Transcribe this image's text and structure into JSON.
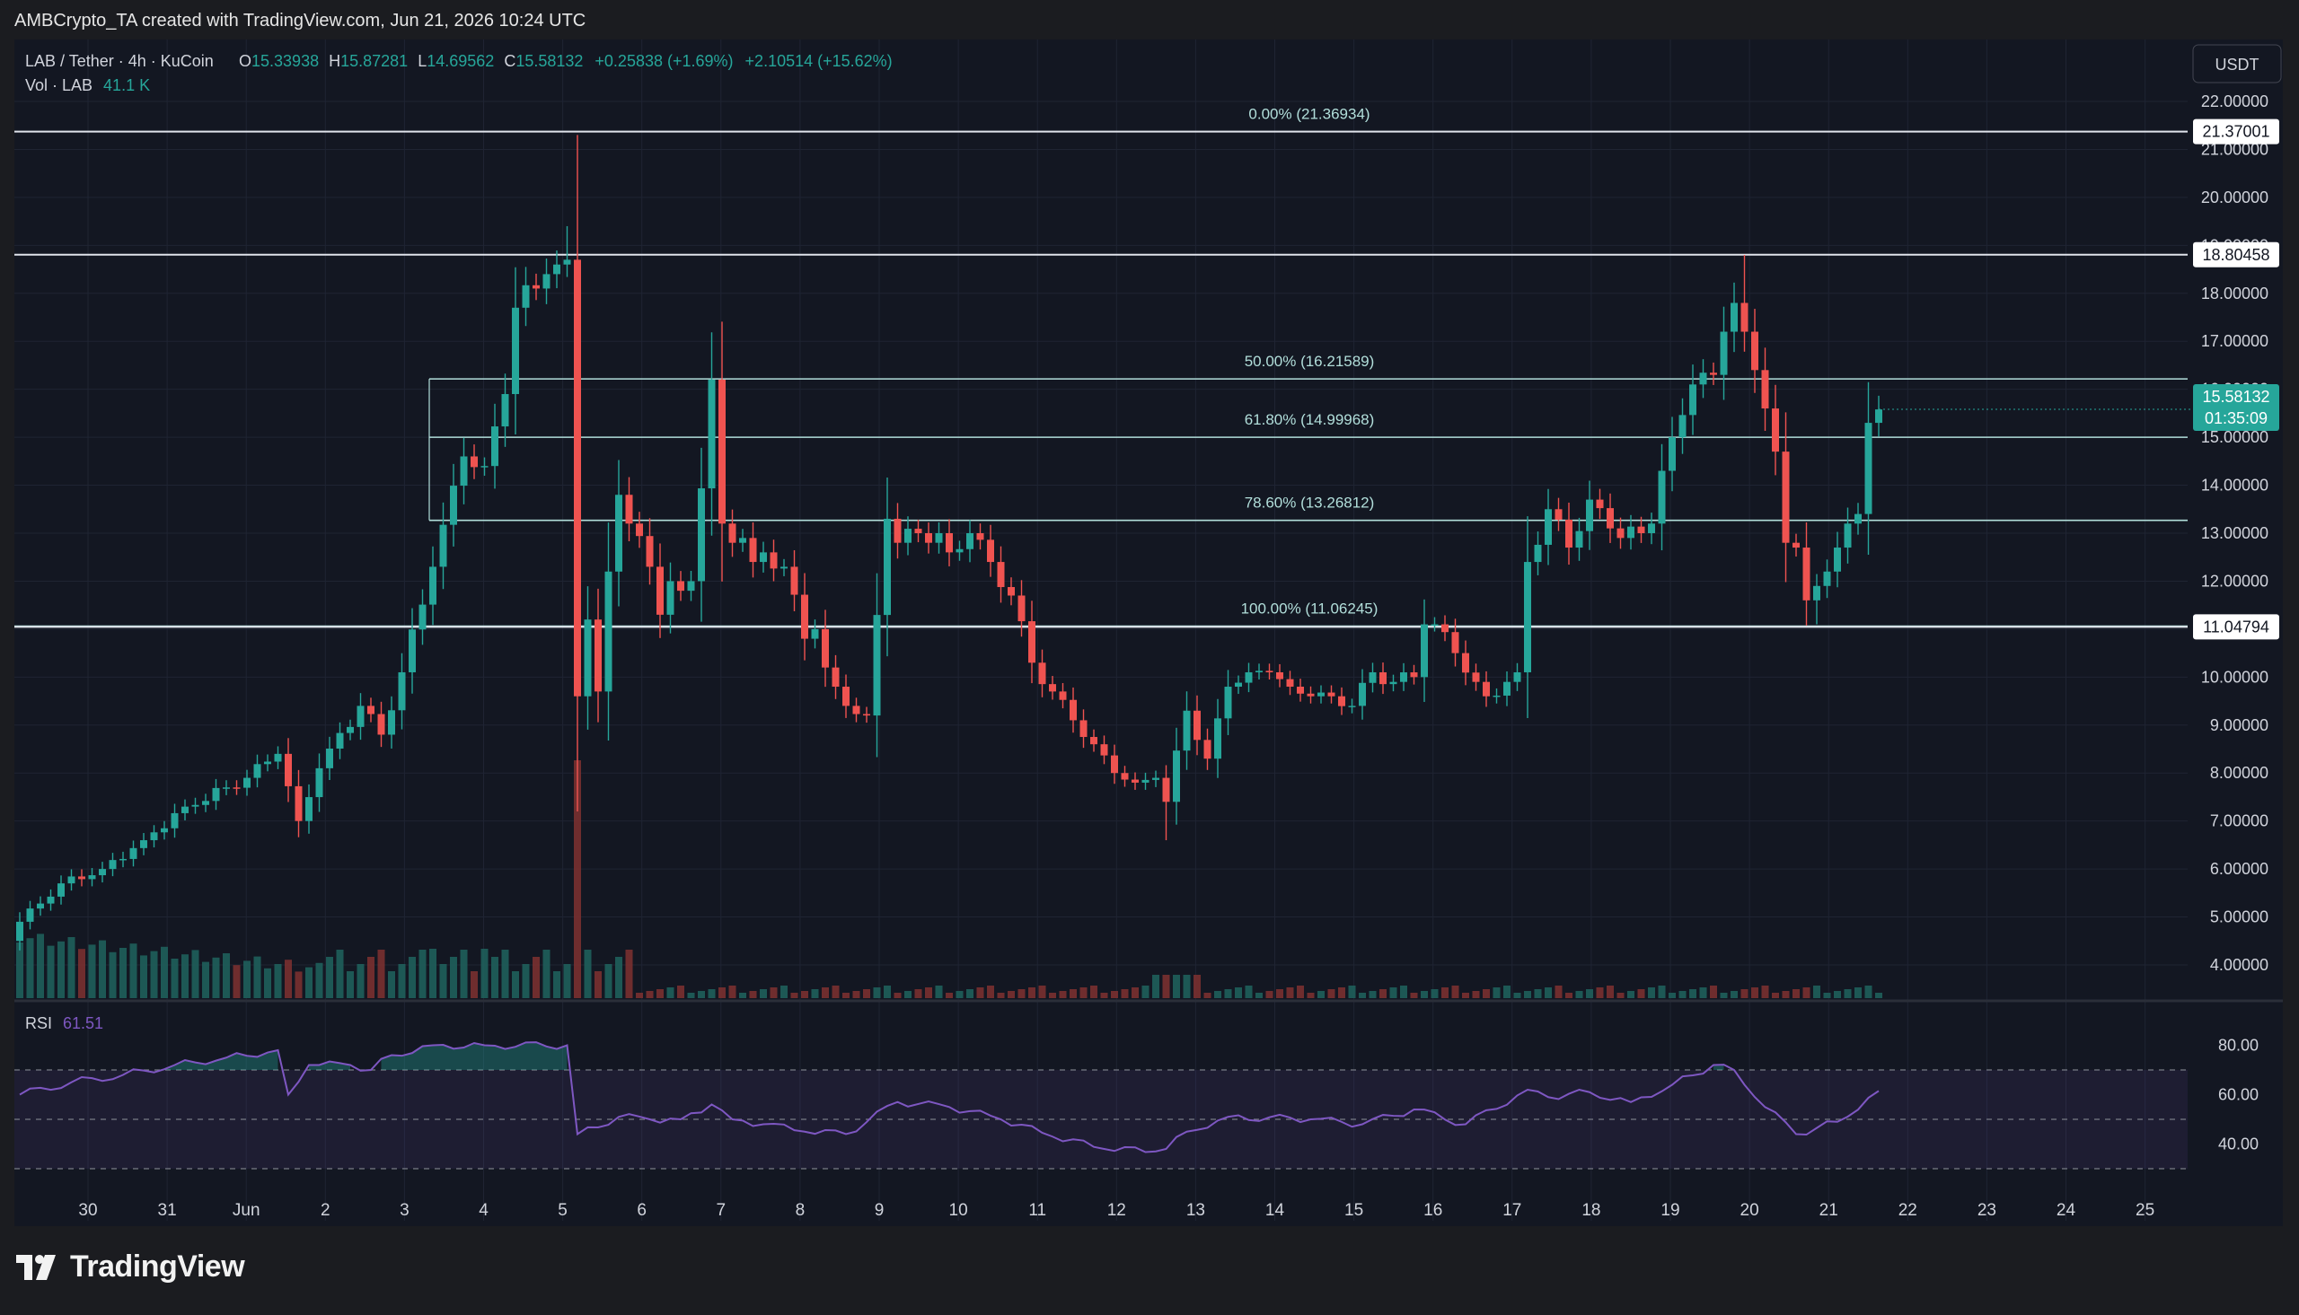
{
  "header": {
    "attribution": "AMBCrypto_TA created with TradingView.com, Jun 21, 2026 10:24 UTC"
  },
  "legend": {
    "symbol": "LAB / Tether · 4h · KuCoin",
    "o_label": "O",
    "o_value": "15.33938",
    "h_label": "H",
    "h_value": "15.87281",
    "l_label": "L",
    "l_value": "14.69562",
    "c_label": "C",
    "c_value": "15.58132",
    "change": "+0.25838 (+1.69%)",
    "change2": "+2.10514 (+15.62%)",
    "vol_label": "Vol · LAB",
    "vol_value": "41.1 K"
  },
  "currency_button": "USDT",
  "fib_labels": [
    "0.00% (21.36934)",
    "50.00% (16.21589)",
    "61.80% (14.99968)",
    "78.60% (13.26812)",
    "100.00% (11.06245)"
  ],
  "price_badges": [
    {
      "label": "21.37001",
      "value": 21.37001
    },
    {
      "label": "18.80458",
      "value": 18.80458
    },
    {
      "label": "11.04794",
      "value": 11.04794
    }
  ],
  "current_price_badge": {
    "price": "15.58132",
    "timer": "01:35:09",
    "value": 15.58132
  },
  "rsi": {
    "label": "RSI",
    "value": "61.51"
  },
  "footer": {
    "logo_text": "TradingView"
  },
  "colors": {
    "up": "#26a69a",
    "down": "#ef5350",
    "rsi_line": "#7e57c2",
    "fib_line": "#b2dfdb",
    "background": "#131722"
  },
  "chart_data": {
    "type": "candlestick",
    "title": "LAB / Tether · 4h · KuCoin",
    "y_axis": {
      "ticks": [
        4,
        5,
        6,
        7,
        8,
        9,
        10,
        11,
        12,
        13,
        14,
        15,
        16,
        17,
        18,
        19,
        20,
        21,
        22
      ],
      "tick_labels": [
        "4.00000",
        "5.00000",
        "6.00000",
        "7.00000",
        "8.00000",
        "9.00000",
        "10.00000",
        "11.00000",
        "12.00000",
        "13.00000",
        "14.00000",
        "15.00000",
        "16.00000",
        "17.00000",
        "18.00000",
        "19.00000",
        "20.00000",
        "21.00000",
        "22.00000"
      ]
    },
    "x_axis": {
      "labels": [
        "30",
        "31",
        "Jun",
        "2",
        "3",
        "4",
        "5",
        "6",
        "7",
        "8",
        "9",
        "10",
        "11",
        "12",
        "13",
        "14",
        "15",
        "16",
        "17",
        "18",
        "19",
        "20",
        "21",
        "22",
        "23",
        "24",
        "25"
      ]
    },
    "fibonacci": [
      {
        "level": "0.00%",
        "price": 21.36934
      },
      {
        "level": "50.00%",
        "price": 16.21589
      },
      {
        "level": "61.80%",
        "price": 14.99968
      },
      {
        "level": "78.60%",
        "price": 13.26812
      },
      {
        "level": "100.00%",
        "price": 11.06245
      }
    ],
    "horizontal_lines": [
      21.37001,
      18.80458,
      11.04794
    ],
    "anchor_points": [
      [
        0,
        4.9
      ],
      [
        4,
        5.7
      ],
      [
        8,
        6.0
      ],
      [
        12,
        6.6
      ],
      [
        16,
        7.3
      ],
      [
        20,
        7.7
      ],
      [
        22,
        7.9
      ],
      [
        25,
        8.4
      ],
      [
        27,
        7.0
      ],
      [
        29,
        8.1
      ],
      [
        33,
        9.4
      ],
      [
        35,
        8.8
      ],
      [
        37,
        10.1
      ],
      [
        40,
        12.3
      ],
      [
        43,
        14.6
      ],
      [
        45,
        14.4
      ],
      [
        47,
        15.9
      ],
      [
        48,
        17.7
      ],
      [
        50,
        18.1
      ],
      [
        51,
        18.4
      ],
      [
        52,
        18.6
      ],
      [
        53,
        18.7
      ],
      [
        54,
        9.6
      ],
      [
        55,
        11.2
      ],
      [
        56,
        9.7
      ],
      [
        57,
        12.2
      ],
      [
        58,
        13.8
      ],
      [
        59,
        13.2
      ],
      [
        61,
        12.3
      ],
      [
        62,
        11.3
      ],
      [
        63,
        12.0
      ],
      [
        64,
        11.8
      ],
      [
        65,
        12.0
      ],
      [
        67,
        16.2
      ],
      [
        68,
        13.2
      ],
      [
        69,
        12.8
      ],
      [
        70,
        12.9
      ],
      [
        71,
        12.4
      ],
      [
        72,
        12.6
      ],
      [
        74,
        12.3
      ],
      [
        76,
        10.8
      ],
      [
        77,
        11.0
      ],
      [
        78,
        10.2
      ],
      [
        79,
        9.8
      ],
      [
        80,
        9.4
      ],
      [
        82,
        9.2
      ],
      [
        84,
        13.3
      ],
      [
        85,
        12.8
      ],
      [
        87,
        13.0
      ],
      [
        88,
        12.8
      ],
      [
        89,
        13.0
      ],
      [
        90,
        12.6
      ],
      [
        92,
        13.0
      ],
      [
        94,
        12.4
      ],
      [
        96,
        11.7
      ],
      [
        98,
        10.3
      ],
      [
        100,
        9.7
      ],
      [
        102,
        9.1
      ],
      [
        104,
        8.6
      ],
      [
        106,
        8.0
      ],
      [
        108,
        7.8
      ],
      [
        110,
        7.9
      ],
      [
        111,
        7.4
      ],
      [
        113,
        9.3
      ],
      [
        115,
        8.3
      ],
      [
        117,
        9.8
      ],
      [
        119,
        10.1
      ],
      [
        121,
        10.1
      ],
      [
        123,
        9.8
      ],
      [
        125,
        9.6
      ],
      [
        127,
        9.6
      ],
      [
        129,
        9.4
      ],
      [
        131,
        10.1
      ],
      [
        133,
        9.9
      ],
      [
        135,
        10.0
      ],
      [
        136,
        11.1
      ],
      [
        137,
        11.1
      ],
      [
        139,
        10.5
      ],
      [
        141,
        9.9
      ],
      [
        142,
        9.6
      ],
      [
        144,
        9.9
      ],
      [
        145,
        10.1
      ],
      [
        146,
        12.4
      ],
      [
        148,
        13.5
      ],
      [
        150,
        12.7
      ],
      [
        152,
        13.7
      ],
      [
        154,
        13.1
      ],
      [
        155,
        12.9
      ],
      [
        157,
        13.0
      ],
      [
        158,
        13.2
      ],
      [
        159,
        14.3
      ],
      [
        160,
        15.0
      ],
      [
        162,
        16.1
      ],
      [
        164,
        16.3
      ],
      [
        165,
        17.2
      ],
      [
        166,
        17.8
      ],
      [
        167,
        17.2
      ],
      [
        168,
        16.4
      ],
      [
        169,
        15.6
      ],
      [
        170,
        14.7
      ],
      [
        171,
        12.8
      ],
      [
        172,
        12.7
      ],
      [
        173,
        11.6
      ],
      [
        174,
        11.9
      ],
      [
        175,
        12.2
      ],
      [
        176,
        12.7
      ],
      [
        177,
        13.2
      ],
      [
        178,
        13.4
      ],
      [
        179,
        15.3
      ],
      [
        180,
        15.58
      ]
    ],
    "volume_pattern": "high at start, spike near Jun 3 (red), low thereafter",
    "rsi": {
      "levels": [
        40,
        60,
        80
      ],
      "overbought": 70,
      "oversold": 30,
      "last": 61.51,
      "anchor_points": [
        [
          0,
          60
        ],
        [
          5,
          65
        ],
        [
          10,
          68
        ],
        [
          15,
          72
        ],
        [
          20,
          75
        ],
        [
          25,
          78
        ],
        [
          26,
          60
        ],
        [
          28,
          72
        ],
        [
          32,
          72
        ],
        [
          34,
          70
        ],
        [
          36,
          76
        ],
        [
          40,
          80
        ],
        [
          45,
          80
        ],
        [
          53,
          80
        ],
        [
          54,
          44
        ],
        [
          58,
          51
        ],
        [
          61,
          50
        ],
        [
          64,
          50
        ],
        [
          67,
          56
        ],
        [
          69,
          50
        ],
        [
          72,
          48
        ],
        [
          76,
          45
        ],
        [
          80,
          44
        ],
        [
          85,
          57
        ],
        [
          90,
          55
        ],
        [
          95,
          50
        ],
        [
          100,
          43
        ],
        [
          105,
          38
        ],
        [
          110,
          37
        ],
        [
          111,
          38
        ],
        [
          113,
          45
        ],
        [
          117,
          51
        ],
        [
          125,
          50
        ],
        [
          130,
          48
        ],
        [
          135,
          54
        ],
        [
          140,
          48
        ],
        [
          146,
          62
        ],
        [
          148,
          59
        ],
        [
          152,
          61
        ],
        [
          156,
          57
        ],
        [
          160,
          64
        ],
        [
          164,
          72
        ],
        [
          166,
          70
        ],
        [
          168,
          59
        ],
        [
          172,
          44
        ],
        [
          176,
          49
        ],
        [
          180,
          61.5
        ]
      ]
    }
  }
}
